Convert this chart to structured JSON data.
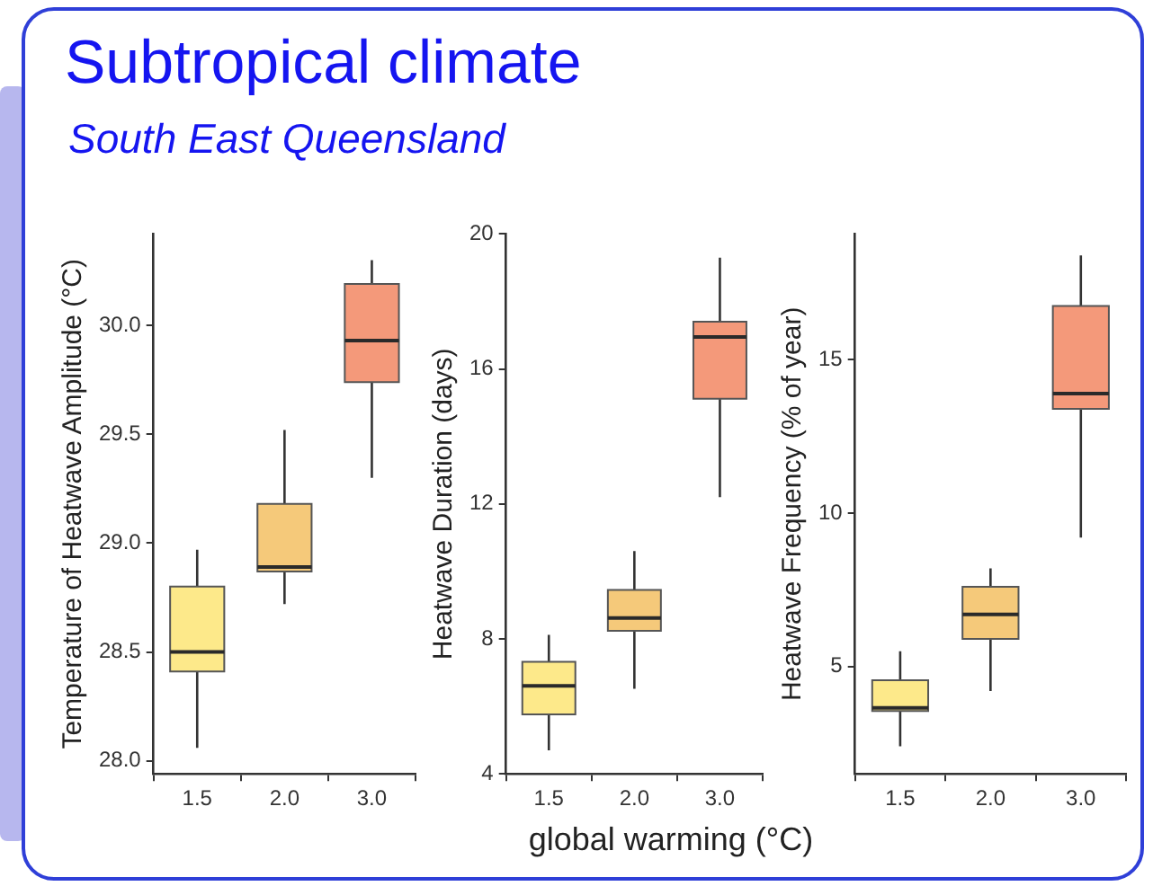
{
  "chart_data": [
    {
      "type": "box",
      "title": "Subtropical climate",
      "subtitle": "South East Queensland",
      "ylabel": "Temperature of Heatwave Amplitude (°C)",
      "categories": [
        "1.5",
        "2.0",
        "3.0"
      ],
      "colors": [
        "#fde98a",
        "#f5c97a",
        "#f4997a"
      ],
      "ylim": [
        27.94,
        30.42
      ],
      "yticks": [
        {
          "value": 28,
          "label": "28.0"
        },
        28.5,
        {
          "value": 29,
          "label": "29.0"
        },
        29.5,
        {
          "value": 30,
          "label": "30.0"
        }
      ],
      "boxes": [
        {
          "low": 28.06,
          "q1": 28.41,
          "median": 28.5,
          "q3": 28.8,
          "high": 28.97
        },
        {
          "low": 28.72,
          "q1": 28.87,
          "median": 28.89,
          "q3": 29.18,
          "high": 29.52
        },
        {
          "low": 29.3,
          "q1": 29.74,
          "median": 29.93,
          "q3": 30.19,
          "high": 30.3
        }
      ]
    },
    {
      "type": "box",
      "xlabel": "global warming (°C)",
      "ylabel": "Heatwave Duration (days)",
      "categories": [
        "1.5",
        "2.0",
        "3.0"
      ],
      "colors": [
        "#fde98a",
        "#f5c97a",
        "#f4997a"
      ],
      "ylim": [
        4,
        20
      ],
      "yticks": [
        4,
        8,
        12,
        16,
        20
      ],
      "boxes": [
        {
          "low": 4.7,
          "q1": 5.76,
          "median": 6.61,
          "q3": 7.32,
          "high": 8.12
        },
        {
          "low": 6.52,
          "q1": 8.24,
          "median": 8.62,
          "q3": 9.45,
          "high": 10.6
        },
        {
          "low": 12.2,
          "q1": 15.12,
          "median": 16.95,
          "q3": 17.4,
          "high": 19.3
        }
      ]
    },
    {
      "type": "box",
      "ylabel": "Heatwave Frequency (% of year)",
      "categories": [
        "1.5",
        "2.0",
        "3.0"
      ],
      "colors": [
        "#fde98a",
        "#f5c97a",
        "#f4997a"
      ],
      "ylim": [
        1.5,
        19.1
      ],
      "yticks": [
        5,
        10,
        15
      ],
      "boxes": [
        {
          "low": 2.4,
          "q1": 3.55,
          "median": 3.65,
          "q3": 4.55,
          "high": 5.5
        },
        {
          "low": 4.2,
          "q1": 5.9,
          "median": 6.7,
          "q3": 7.6,
          "high": 8.2
        },
        {
          "low": 9.2,
          "q1": 13.4,
          "median": 13.9,
          "q3": 16.75,
          "high": 18.4
        }
      ]
    }
  ]
}
